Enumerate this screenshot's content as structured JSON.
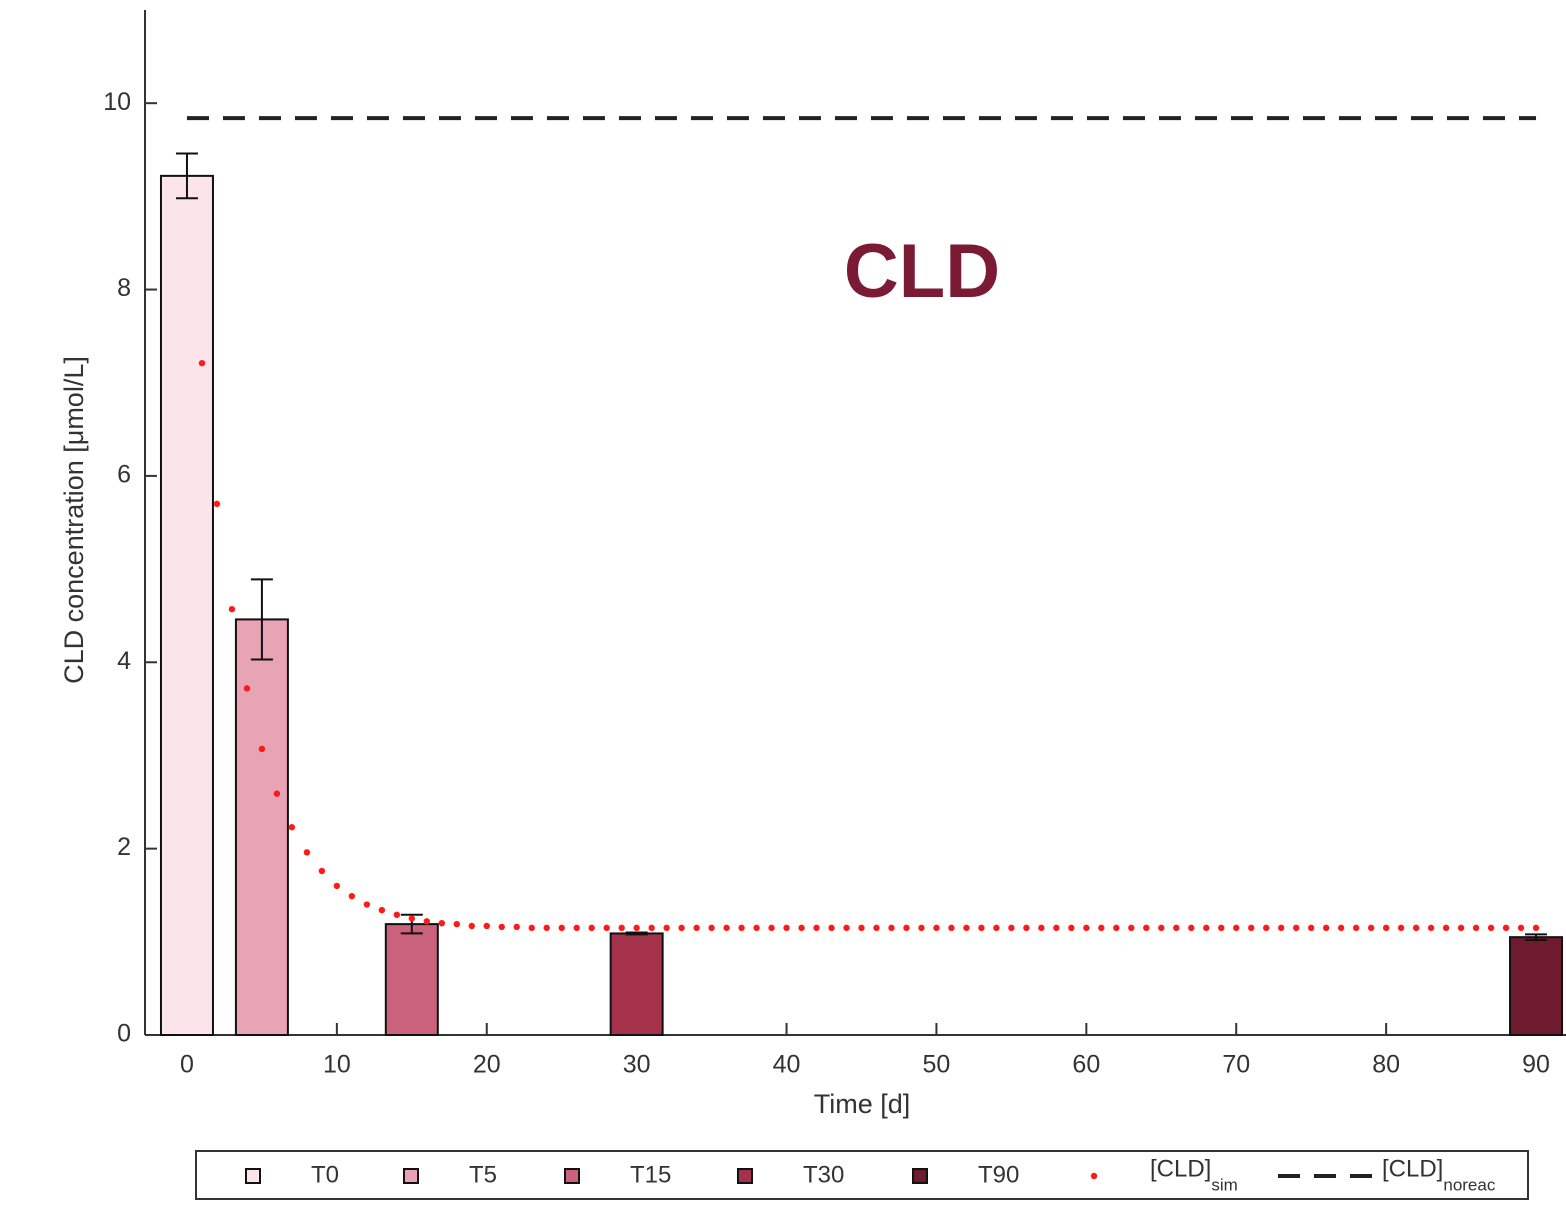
{
  "chart_data": {
    "type": "bar",
    "annotation": "CLD",
    "xlabel": "Time [d]",
    "ylabel": "CLD concentration [μmol/L]",
    "xlim": [
      -2.8,
      92
    ],
    "ylim": [
      0,
      11
    ],
    "xticks": [
      0,
      10,
      20,
      30,
      40,
      50,
      60,
      70,
      80,
      90
    ],
    "yticks": [
      0,
      2,
      4,
      6,
      8,
      10
    ],
    "series": [
      {
        "name": "T0",
        "color": "#fbe4ea",
        "x": [
          0
        ],
        "values": [
          9.22
        ],
        "errors": [
          0.24
        ]
      },
      {
        "name": "T5",
        "color": "#e8a3b5",
        "x": [
          5
        ],
        "values": [
          4.46
        ],
        "errors": [
          0.43
        ]
      },
      {
        "name": "T15",
        "color": "#c9627a",
        "x": [
          15
        ],
        "values": [
          1.19
        ],
        "errors": [
          0.1
        ]
      },
      {
        "name": "T30",
        "color": "#a3324a",
        "x": [
          30
        ],
        "values": [
          1.09
        ],
        "errors": [
          0.01
        ]
      },
      {
        "name": "T90",
        "color": "#6e1a2f",
        "x": [
          90
        ],
        "values": [
          1.05
        ],
        "errors": [
          0.03
        ]
      }
    ],
    "sim": {
      "name": "[CLD]",
      "subscript": "sim",
      "color": "#ff1a1a",
      "x": [
        1,
        2,
        3,
        4,
        5,
        6,
        7,
        8,
        9,
        10,
        11,
        12,
        13,
        14,
        15,
        16,
        17,
        18,
        19,
        20,
        21,
        22,
        23,
        24,
        25,
        26,
        27,
        28,
        29,
        30,
        31,
        32,
        33,
        34,
        35,
        36,
        37,
        38,
        39,
        40,
        41,
        42,
        43,
        44,
        45,
        46,
        47,
        48,
        49,
        50,
        51,
        52,
        53,
        54,
        55,
        56,
        57,
        58,
        59,
        60,
        61,
        62,
        63,
        64,
        65,
        66,
        67,
        68,
        69,
        70,
        71,
        72,
        73,
        74,
        75,
        76,
        77,
        78,
        79,
        80,
        81,
        82,
        83,
        84,
        85,
        86,
        87,
        88,
        89,
        90
      ],
      "values": [
        7.21,
        5.7,
        4.57,
        3.72,
        3.07,
        2.59,
        2.23,
        1.96,
        1.76,
        1.6,
        1.49,
        1.4,
        1.34,
        1.29,
        1.25,
        1.22,
        1.2,
        1.19,
        1.17,
        1.17,
        1.16,
        1.16,
        1.15,
        1.15,
        1.15,
        1.15,
        1.15,
        1.15,
        1.15,
        1.15,
        1.15,
        1.15,
        1.15,
        1.15,
        1.15,
        1.15,
        1.15,
        1.15,
        1.15,
        1.15,
        1.15,
        1.15,
        1.15,
        1.15,
        1.15,
        1.15,
        1.15,
        1.15,
        1.15,
        1.15,
        1.15,
        1.15,
        1.15,
        1.15,
        1.15,
        1.15,
        1.15,
        1.15,
        1.15,
        1.15,
        1.15,
        1.15,
        1.15,
        1.15,
        1.15,
        1.15,
        1.15,
        1.15,
        1.15,
        1.15,
        1.15,
        1.15,
        1.15,
        1.15,
        1.15,
        1.15,
        1.15,
        1.15,
        1.15,
        1.15,
        1.15,
        1.15,
        1.15,
        1.15,
        1.15,
        1.15,
        1.15,
        1.15,
        1.15,
        1.15
      ]
    },
    "noreac": {
      "name": "[CLD]",
      "subscript": "noreac",
      "color": "#222222",
      "x": [
        0,
        90
      ],
      "values": [
        9.84,
        9.84
      ]
    }
  }
}
